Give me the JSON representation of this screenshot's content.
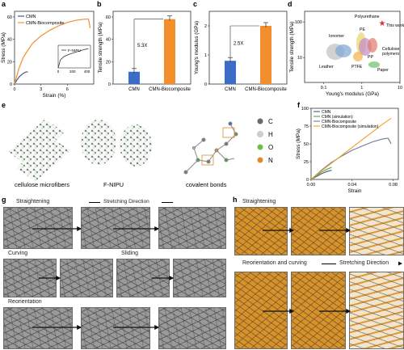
{
  "panel_labels": [
    "a",
    "b",
    "c",
    "d",
    "e",
    "f",
    "g",
    "h"
  ],
  "colors": {
    "cmn": "#4b5b7a",
    "biocomposite": "#f28e2b",
    "bar_blue": "#3a6cc8",
    "bar_orange": "#f28e2b",
    "cmn_sim": "#5aa05a",
    "bio_sim": "#f0a020"
  },
  "panel_a": {
    "xlabel": "Strain (%)",
    "ylabel": "Stress (MPa)",
    "legend": [
      "CMN",
      "CMN-Biocomposite"
    ],
    "inset_label": "F-NIPU",
    "xticks": [
      "0",
      "3",
      "6"
    ],
    "yticks": [
      "0",
      "20",
      "40",
      "60"
    ],
    "inset_xticks": [
      "0",
      "200",
      "400"
    ]
  },
  "panel_b": {
    "ylabel": "Tensile strength (MPa)",
    "categories": [
      "CMN",
      "CMN-Biocomposite"
    ],
    "annotation": "5.3X",
    "yticks": [
      "0",
      "20",
      "40",
      "60"
    ]
  },
  "panel_c": {
    "ylabel": "Young's modulus (GPa)",
    "categories": [
      "CMN",
      "CMN-Biocomposite"
    ],
    "annotation": "2.5X",
    "yticks": [
      "0",
      "1",
      "2"
    ]
  },
  "panel_d": {
    "xlabel": "Young's modulus (GPa)",
    "ylabel": "Tensile strength (MPa)",
    "xticks": [
      "0.1",
      "1",
      "10"
    ],
    "yticks": [
      "10",
      "100"
    ],
    "labels": [
      "Polyurethane",
      "This work",
      "Ionomer",
      "PE",
      "PTFE",
      "PP",
      "Leather",
      "Paper",
      "Cellulose polymers"
    ]
  },
  "panel_e": {
    "captions": [
      "cellulose microfibers",
      "F-NIPU",
      "covalent bonds"
    ],
    "legend": [
      "C",
      "H",
      "O",
      "N"
    ]
  },
  "panel_f": {
    "xlabel": "Strain",
    "ylabel": "Stress (MPa)",
    "legend": [
      "CMN",
      "CMN (simulation)",
      "CMN-Biocomposite",
      "CMN-Biocomposite (simulation)"
    ],
    "xticks": [
      "0.00",
      "0.04",
      "0.08"
    ],
    "yticks": [
      "0",
      "25",
      "50",
      "75",
      "100"
    ]
  },
  "panel_g": {
    "titles": [
      "Straightening",
      "Curving",
      "Sliding",
      "Reorientation"
    ],
    "direction": "Stretching Direction"
  },
  "panel_h": {
    "titles": [
      "Straightening",
      "Reorientation and curving"
    ],
    "direction": "Stretching Direction"
  },
  "chart_data": [
    {
      "type": "line",
      "title": "",
      "xlabel": "Strain (%)",
      "ylabel": "Stress (MPa)",
      "xlim": [
        0,
        9
      ],
      "ylim": [
        0,
        65
      ],
      "series": [
        {
          "name": "CMN",
          "x": [
            0,
            0.3,
            0.6,
            0.9,
            1.2,
            1.5
          ],
          "y": [
            0,
            4,
            7,
            9,
            10.5,
            11
          ]
        },
        {
          "name": "CMN-Biocomposite",
          "x": [
            0,
            0.5,
            1,
            2,
            3,
            4,
            5,
            6,
            7,
            8,
            8.4,
            8.6
          ],
          "y": [
            0,
            14,
            24,
            36,
            43,
            48,
            52,
            55,
            57,
            58,
            58,
            50
          ]
        }
      ]
    },
    {
      "type": "line",
      "title": "",
      "xlabel": "",
      "ylabel": "",
      "xlim": [
        0,
        450
      ],
      "ylim": [
        0,
        1
      ],
      "series": [
        {
          "name": "F-NIPU",
          "x": [
            0,
            30,
            80,
            150,
            250,
            350,
            420
          ],
          "y": [
            0,
            0.35,
            0.5,
            0.6,
            0.7,
            0.8,
            0.85
          ]
        }
      ]
    },
    {
      "type": "bar",
      "categories": [
        "CMN",
        "CMN-Biocomposite"
      ],
      "values": [
        11,
        58
      ],
      "title": "",
      "ylabel": "Tensile strength (MPa)",
      "ylim": [
        0,
        65
      ]
    },
    {
      "type": "bar",
      "categories": [
        "CMN",
        "CMN-Biocomposite"
      ],
      "values": [
        0.8,
        2.0
      ],
      "title": "",
      "ylabel": "Young's modulus (GPa)",
      "ylim": [
        0,
        2.5
      ]
    },
    {
      "type": "line",
      "title": "",
      "xlabel": "Strain",
      "ylabel": "Stress (MPa)",
      "xlim": [
        0,
        0.085
      ],
      "ylim": [
        0,
        100
      ],
      "series": [
        {
          "name": "CMN",
          "x": [
            0,
            0.005,
            0.01,
            0.015,
            0.02
          ],
          "y": [
            0,
            4,
            8,
            11,
            13
          ]
        },
        {
          "name": "CMN (simulation)",
          "x": [
            0,
            0.005,
            0.01,
            0.015,
            0.02
          ],
          "y": [
            0,
            5,
            10,
            14,
            17
          ]
        },
        {
          "name": "CMN-Biocomposite",
          "x": [
            0,
            0.01,
            0.02,
            0.03,
            0.04,
            0.05,
            0.06,
            0.07,
            0.075,
            0.078
          ],
          "y": [
            0,
            13,
            24,
            33,
            41,
            47,
            53,
            57,
            58,
            50
          ]
        },
        {
          "name": "CMN-Biocomposite (simulation)",
          "x": [
            0,
            0.01,
            0.02,
            0.03,
            0.04,
            0.05,
            0.06,
            0.07,
            0.078
          ],
          "y": [
            0,
            12,
            23,
            34,
            45,
            56,
            67,
            78,
            86
          ]
        }
      ]
    }
  ]
}
